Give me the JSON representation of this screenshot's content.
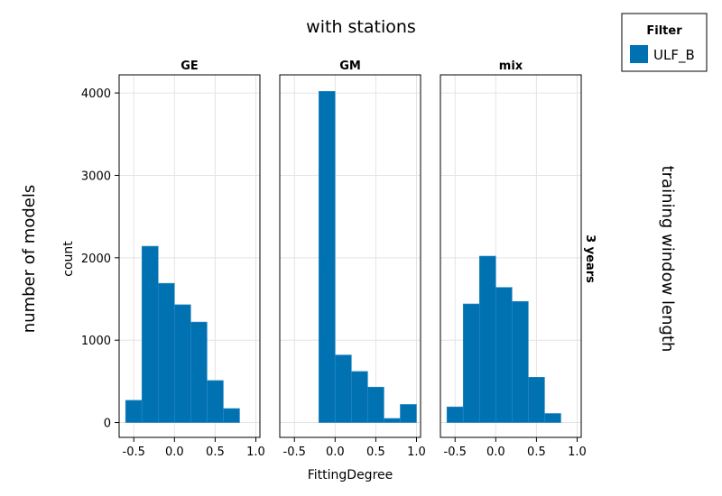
{
  "figure": {
    "suptitle": "with stations",
    "left_label": "number of models",
    "right_label": "training window length",
    "row_label": "3 years"
  },
  "legend": {
    "title": "Filter",
    "entries": [
      "ULF_B"
    ]
  },
  "chart_data": {
    "type": "bar",
    "xlabel": "FittingDegree",
    "ylabel": "count",
    "xlim": [
      -0.68,
      1.05
    ],
    "ylim": [
      -180,
      4220
    ],
    "xticks": [
      -0.5,
      0.0,
      0.5,
      1.0
    ],
    "xtick_labels": [
      "-0.5",
      "0.0",
      "0.5",
      "1.0"
    ],
    "yticks": [
      0,
      1000,
      2000,
      3000,
      4000
    ],
    "ytick_labels": [
      "0",
      "1000",
      "2000",
      "3000",
      "4000"
    ],
    "grid": true,
    "legend_position": "top-right outside",
    "color": "#0072b2",
    "panels": [
      {
        "title": "GE",
        "series": [
          {
            "name": "ULF_B",
            "bins": [
              [
                -0.6,
                -0.4
              ],
              [
                -0.4,
                -0.2
              ],
              [
                -0.2,
                0.0
              ],
              [
                0.0,
                0.2
              ],
              [
                0.2,
                0.4
              ],
              [
                0.4,
                0.6
              ],
              [
                0.6,
                0.8
              ]
            ],
            "values": [
              270,
              2140,
              1690,
              1430,
              1220,
              510,
              170
            ]
          }
        ]
      },
      {
        "title": "GM",
        "series": [
          {
            "name": "ULF_B",
            "bins": [
              [
                -0.2,
                0.0
              ],
              [
                0.0,
                0.2
              ],
              [
                0.2,
                0.4
              ],
              [
                0.4,
                0.6
              ],
              [
                0.6,
                0.8
              ],
              [
                0.8,
                1.0
              ]
            ],
            "values": [
              4020,
              820,
              620,
              430,
              50,
              220
            ]
          }
        ]
      },
      {
        "title": "mix",
        "series": [
          {
            "name": "ULF_B",
            "bins": [
              [
                -0.6,
                -0.4
              ],
              [
                -0.4,
                -0.2
              ],
              [
                -0.2,
                0.0
              ],
              [
                0.0,
                0.2
              ],
              [
                0.2,
                0.4
              ],
              [
                0.4,
                0.6
              ],
              [
                0.6,
                0.8
              ]
            ],
            "values": [
              190,
              1440,
              2020,
              1640,
              1470,
              550,
              110
            ]
          }
        ]
      }
    ]
  }
}
